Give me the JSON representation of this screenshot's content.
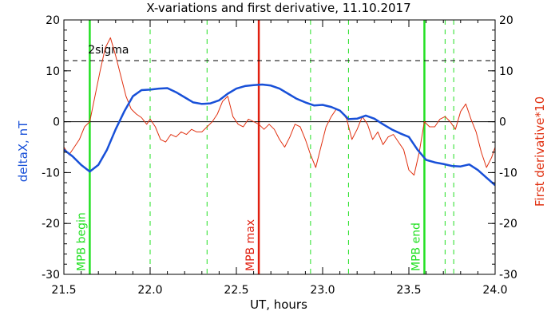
{
  "chart_data": {
    "type": "line",
    "title": "X-variations and first derivative, 11.10.2017",
    "xlabel": "UT, hours",
    "ylabel_left": "deltaX, nT",
    "ylabel_right": "First derivative*10",
    "xlim": [
      21.5,
      24.0
    ],
    "ylim": [
      -30,
      20
    ],
    "xticks": [
      "21.5",
      "22.0",
      "22.5",
      "23.0",
      "23.5",
      "24.0"
    ],
    "yticks": [
      "20",
      "10",
      "0",
      "-10",
      "-20",
      "-30"
    ],
    "colors": {
      "deltaX": "#1850d8",
      "derivative": "#e03010",
      "mpb_edge": "#22e022",
      "mpb_max": "#e02010",
      "reference": "#000000"
    },
    "reference_lines": [
      {
        "label": "2sigma",
        "y": 12,
        "style": "dashed"
      },
      {
        "label": "",
        "y": 0,
        "style": "solid"
      }
    ],
    "event_markers": [
      {
        "label": "MPB begin",
        "x": 21.65,
        "color": "green",
        "style": "solid"
      },
      {
        "label": "MPB max",
        "x": 22.63,
        "color": "red",
        "style": "solid"
      },
      {
        "label": "MPB end",
        "x": 23.59,
        "color": "green",
        "style": "solid"
      },
      {
        "label": "",
        "x": 22.0,
        "color": "green",
        "style": "dashed"
      },
      {
        "label": "",
        "x": 22.33,
        "color": "green",
        "style": "dashed"
      },
      {
        "label": "",
        "x": 22.93,
        "color": "green",
        "style": "dashed"
      },
      {
        "label": "",
        "x": 23.15,
        "color": "green",
        "style": "dashed"
      },
      {
        "label": "",
        "x": 23.71,
        "color": "green",
        "style": "dashed"
      },
      {
        "label": "",
        "x": 23.76,
        "color": "green",
        "style": "dashed"
      }
    ],
    "series": [
      {
        "key": "deltaX",
        "color": "blue",
        "x": [
          21.5,
          21.55,
          21.6,
          21.65,
          21.7,
          21.75,
          21.8,
          21.85,
          21.9,
          21.95,
          22.0,
          22.05,
          22.1,
          22.15,
          22.2,
          22.25,
          22.3,
          22.35,
          22.4,
          22.45,
          22.5,
          22.55,
          22.6,
          22.65,
          22.7,
          22.75,
          22.8,
          22.85,
          22.9,
          22.95,
          23.0,
          23.05,
          23.1,
          23.15,
          23.2,
          23.25,
          23.3,
          23.35,
          23.4,
          23.45,
          23.5,
          23.55,
          23.6,
          23.65,
          23.7,
          23.75,
          23.8,
          23.85,
          23.9,
          23.95,
          24.0
        ],
        "values": [
          -5.5,
          -6.8,
          -8.5,
          -9.8,
          -8.5,
          -5.5,
          -1.5,
          2.0,
          5.0,
          6.2,
          6.3,
          6.5,
          6.6,
          5.8,
          4.8,
          3.8,
          3.5,
          3.6,
          4.2,
          5.5,
          6.5,
          7.0,
          7.2,
          7.3,
          7.1,
          6.5,
          5.5,
          4.5,
          3.8,
          3.2,
          3.3,
          2.9,
          2.2,
          0.5,
          0.6,
          1.2,
          0.6,
          -0.5,
          -1.5,
          -2.3,
          -3.0,
          -5.5,
          -7.5,
          -8.0,
          -8.3,
          -8.7,
          -8.8,
          -8.4,
          -9.5,
          -11.0,
          -12.5
        ]
      },
      {
        "key": "derivative",
        "color": "red",
        "x": [
          21.5,
          21.53,
          21.56,
          21.59,
          21.62,
          21.65,
          21.68,
          21.71,
          21.74,
          21.77,
          21.8,
          21.83,
          21.86,
          21.89,
          21.92,
          21.95,
          21.98,
          22.0,
          22.03,
          22.06,
          22.09,
          22.12,
          22.15,
          22.18,
          22.21,
          22.24,
          22.27,
          22.3,
          22.33,
          22.36,
          22.39,
          22.42,
          22.45,
          22.48,
          22.51,
          22.54,
          22.57,
          22.6,
          22.63,
          22.66,
          22.69,
          22.72,
          22.75,
          22.78,
          22.81,
          22.84,
          22.87,
          22.9,
          22.93,
          22.96,
          22.99,
          23.02,
          23.05,
          23.08,
          23.11,
          23.14,
          23.17,
          23.2,
          23.23,
          23.26,
          23.29,
          23.32,
          23.35,
          23.38,
          23.41,
          23.44,
          23.47,
          23.5,
          23.53,
          23.56,
          23.59,
          23.62,
          23.65,
          23.68,
          23.71,
          23.74,
          23.77,
          23.8,
          23.83,
          23.86,
          23.89,
          23.92,
          23.95,
          23.98,
          24.0
        ],
        "values": [
          -5.0,
          -6.5,
          -5.0,
          -3.5,
          -1.0,
          0.0,
          5.0,
          10.0,
          14.5,
          16.5,
          13.0,
          9.0,
          5.0,
          2.5,
          1.5,
          0.8,
          -0.5,
          0.5,
          -1.0,
          -3.5,
          -4.0,
          -2.5,
          -3.0,
          -2.0,
          -2.5,
          -1.5,
          -2.0,
          -2.0,
          -1.0,
          0.0,
          1.5,
          4.0,
          5.0,
          1.0,
          -0.5,
          -1.0,
          0.5,
          0.0,
          -0.5,
          -1.5,
          -0.5,
          -1.5,
          -3.5,
          -5.0,
          -3.0,
          -0.5,
          -1.0,
          -3.5,
          -6.5,
          -9.0,
          -5.0,
          -1.0,
          1.0,
          2.5,
          2.0,
          0.5,
          -3.5,
          -1.5,
          1.0,
          -0.5,
          -3.5,
          -2.0,
          -4.5,
          -3.0,
          -2.5,
          -4.0,
          -5.5,
          -9.5,
          -10.5,
          -6.0,
          0.0,
          -1.0,
          -1.0,
          0.5,
          1.0,
          0.0,
          -1.5,
          2.0,
          3.5,
          0.5,
          -2.0,
          -6.0,
          -9.0,
          -7.0,
          -5.0
        ]
      }
    ]
  }
}
